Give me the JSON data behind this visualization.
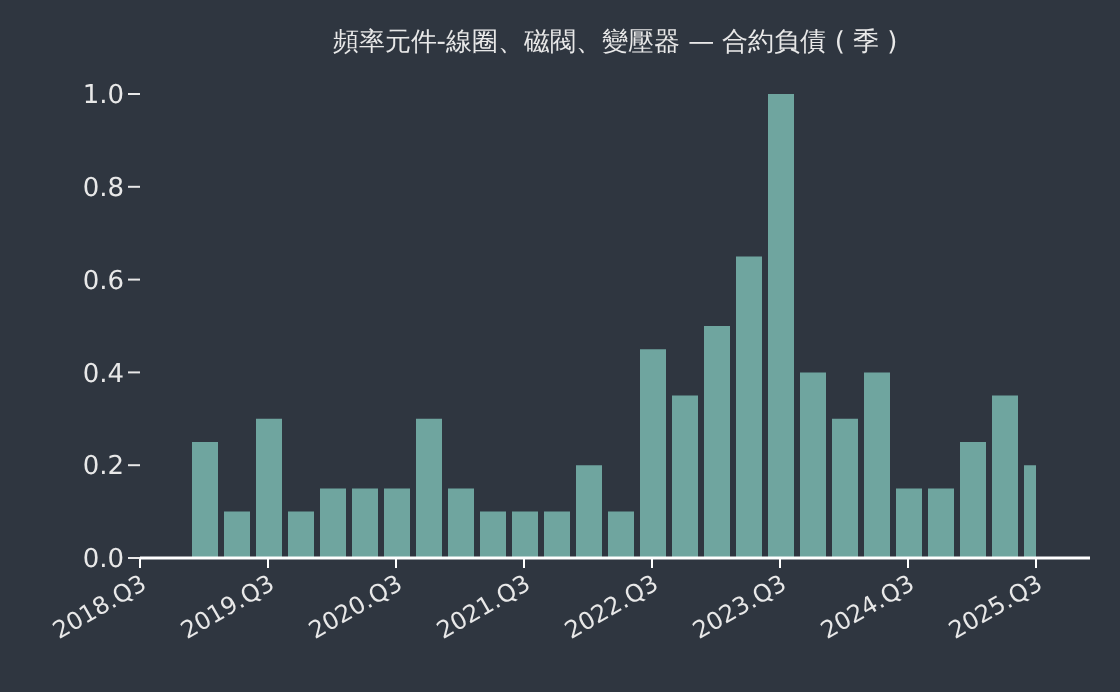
{
  "chart_data": {
    "type": "bar",
    "title": "頻率元件-線圈、磁閥、變壓器 — 合約負債 ( 季 )",
    "categories": [
      "2018.Q3",
      null,
      null,
      null,
      "2019.Q3",
      null,
      null,
      null,
      "2020.Q3",
      null,
      null,
      null,
      "2021.Q3",
      null,
      null,
      null,
      "2022.Q3",
      null,
      null,
      null,
      "2023.Q3",
      null,
      null,
      null,
      "2024.Q3",
      null,
      null,
      null,
      "2025.Q3"
    ],
    "values": [
      null,
      null,
      0.25,
      0.1,
      0.3,
      0.1,
      0.15,
      0.15,
      0.15,
      0.3,
      0.15,
      0.1,
      0.1,
      0.1,
      0.2,
      0.1,
      0.45,
      0.35,
      0.5,
      0.65,
      1.0,
      0.4,
      0.3,
      0.4,
      0.15,
      0.15,
      0.25,
      0.35,
      0.2
    ],
    "color": "#6fa59f",
    "ylim": [
      0,
      1.0
    ],
    "yticks": [
      {
        "value": 0,
        "label": "0.0"
      },
      {
        "value": 0.2,
        "label": "0.2"
      },
      {
        "value": 0.4,
        "label": "0.4"
      },
      {
        "value": 0.6,
        "label": "0.6"
      },
      {
        "value": 0.8,
        "label": "0.8"
      },
      {
        "value": 1.0,
        "label": "1.0"
      }
    ]
  }
}
